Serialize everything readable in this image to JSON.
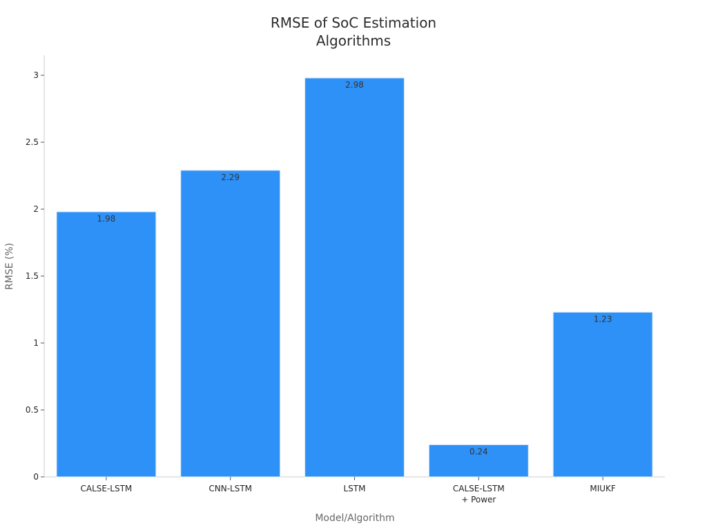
{
  "chart_data": {
    "type": "bar",
    "title": [
      "RMSE of SoC Estimation",
      "Algorithms"
    ],
    "xlabel": "Model/Algorithm",
    "ylabel": "RMSE (%)",
    "categories": [
      [
        "CALSE-LSTM"
      ],
      [
        "CNN-LSTM"
      ],
      [
        "LSTM"
      ],
      [
        "CALSE-LSTM",
        "+ Power"
      ],
      [
        "MIUKF"
      ]
    ],
    "values": [
      1.98,
      2.29,
      2.98,
      0.24,
      1.23
    ],
    "data_labels": [
      "1.98",
      "2.29",
      "2.98",
      "0.24",
      "1.23"
    ],
    "ylim": [
      0,
      3.15
    ],
    "yticks": [
      0,
      0.5,
      1,
      1.5,
      2,
      2.5,
      3
    ],
    "ytick_labels": [
      "0",
      "0.5",
      "1",
      "1.5",
      "2",
      "2.5",
      "3"
    ],
    "grid": false,
    "legend": "none",
    "colors": {
      "bar": "#2e91f8",
      "bar_edge": "#d6e6f5",
      "axis": "#cccccc"
    }
  }
}
